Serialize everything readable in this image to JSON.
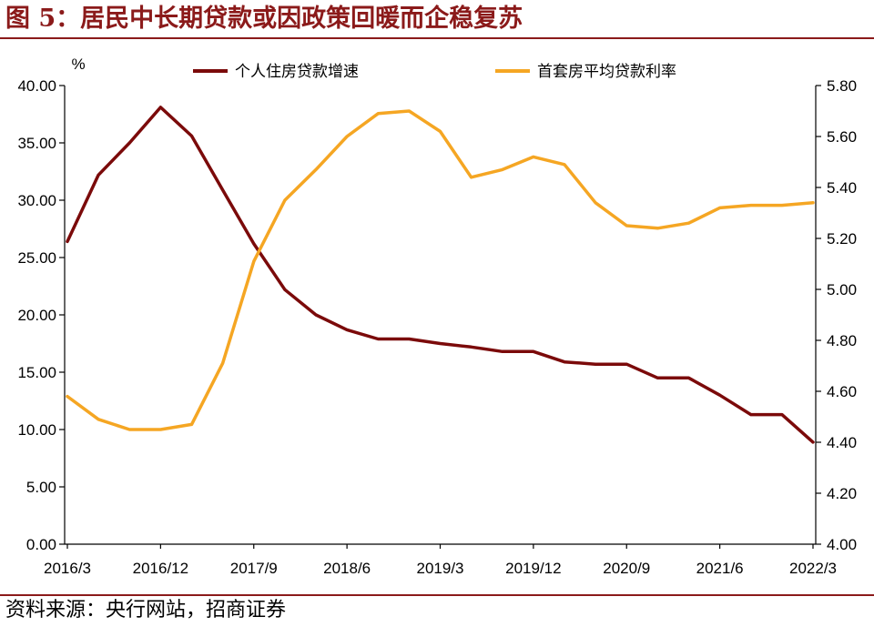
{
  "header": {
    "title": "图 5：居民中长期贷款或因政策回暖而企稳复苏"
  },
  "footer": {
    "source": "资料来源：央行网站，招商证券"
  },
  "chart_data": {
    "type": "line",
    "title": "",
    "y_unit_label": "%",
    "x_tick_labels": [
      "2016/3",
      "2016/12",
      "2017/9",
      "2018/6",
      "2019/3",
      "2019/12",
      "2020/9",
      "2021/6",
      "2022/3"
    ],
    "x_tick_months": [
      "2016-03",
      "2016-12",
      "2017-09",
      "2018-06",
      "2019-03",
      "2019-12",
      "2020-09",
      "2021-06",
      "2022-03"
    ],
    "y_left": {
      "range": [
        0,
        40
      ],
      "ticks": [
        "0.00",
        "5.00",
        "10.00",
        "15.00",
        "20.00",
        "25.00",
        "30.00",
        "35.00",
        "40.00"
      ]
    },
    "y_right": {
      "range": [
        4.0,
        5.8
      ],
      "ticks": [
        "4.00",
        "4.20",
        "4.40",
        "4.60",
        "4.80",
        "5.00",
        "5.20",
        "5.40",
        "5.60",
        "5.80"
      ]
    },
    "legend_position": "top",
    "grid": false,
    "series": [
      {
        "name": "个人住房贷款增速",
        "axis": "left",
        "color": "#7B0A0A",
        "x": [
          "2016-03",
          "2016-06",
          "2016-09",
          "2016-12",
          "2017-03",
          "2017-06",
          "2017-09",
          "2017-12",
          "2018-03",
          "2018-06",
          "2018-09",
          "2018-12",
          "2019-03",
          "2019-06",
          "2019-09",
          "2019-12",
          "2020-03",
          "2020-06",
          "2020-09",
          "2020-12",
          "2021-03",
          "2021-06",
          "2021-09",
          "2021-12",
          "2022-03"
        ],
        "values": [
          26.4,
          32.2,
          35.0,
          38.1,
          35.6,
          30.9,
          26.2,
          22.2,
          20.0,
          18.7,
          17.9,
          17.9,
          17.5,
          17.2,
          16.8,
          16.8,
          15.9,
          15.7,
          15.7,
          14.5,
          14.5,
          13.0,
          11.3,
          11.3,
          8.9
        ]
      },
      {
        "name": "首套房平均贷款利率",
        "axis": "right",
        "color": "#F5A623",
        "x": [
          "2016-03",
          "2016-06",
          "2016-09",
          "2016-12",
          "2017-03",
          "2017-06",
          "2017-09",
          "2017-12",
          "2018-03",
          "2018-06",
          "2018-09",
          "2018-12",
          "2019-03",
          "2019-06",
          "2019-09",
          "2019-12",
          "2020-03",
          "2020-06",
          "2020-09",
          "2020-12",
          "2021-03",
          "2021-06",
          "2021-09",
          "2021-12",
          "2022-03"
        ],
        "values": [
          4.58,
          4.49,
          4.45,
          4.45,
          4.47,
          4.71,
          5.11,
          5.35,
          5.47,
          5.6,
          5.69,
          5.7,
          5.62,
          5.44,
          5.47,
          5.52,
          5.49,
          5.34,
          5.25,
          5.24,
          5.26,
          5.32,
          5.33,
          5.33,
          5.34
        ]
      }
    ]
  }
}
